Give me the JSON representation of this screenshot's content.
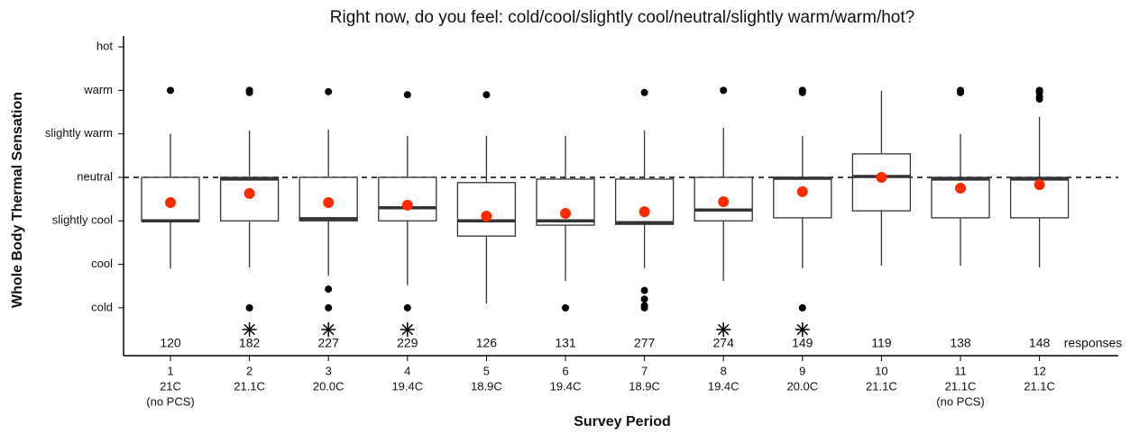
{
  "chart_data": {
    "type": "box",
    "title": "Right now, do you feel: cold/cool/slightly cool/neutral/slightly warm/warm/hot?",
    "y_label": "Whole Body Thermal Sensation",
    "x_label": "Survey Period",
    "categories": [
      "1",
      "2",
      "3",
      "4",
      "5",
      "6",
      "7",
      "8",
      "9",
      "10",
      "11",
      "12"
    ],
    "temperatures": [
      "21C",
      "21.1C",
      "20.0C",
      "19.4C",
      "18.9C",
      "19.4C",
      "18.9C",
      "19.4C",
      "20.0C",
      "21.1C",
      "21.1C",
      "21.1C"
    ],
    "notes": [
      "(no PCS)",
      null,
      null,
      null,
      null,
      null,
      null,
      null,
      null,
      null,
      "(no PCS)",
      null
    ],
    "counts": [
      120,
      182,
      227,
      229,
      126,
      131,
      277,
      274,
      149,
      119,
      138,
      148
    ],
    "counts_unit": "responses",
    "significant": [
      false,
      true,
      true,
      true,
      false,
      false,
      false,
      true,
      true,
      false,
      false,
      false
    ],
    "boxes": [
      {
        "low": -2.1,
        "q1": -1,
        "median": -1,
        "q3": 0,
        "high": 1,
        "mean": -0.58,
        "outliers": [
          2
        ]
      },
      {
        "low": -2.07,
        "q1": -1,
        "median": -0.04,
        "q3": 0,
        "high": 1.08,
        "mean": -0.37,
        "outliers": [
          2,
          1.95,
          -3
        ]
      },
      {
        "low": -2.26,
        "q1": -1,
        "median": -0.95,
        "q3": 0,
        "high": 1.1,
        "mean": -0.58,
        "outliers": [
          1.97,
          -2.57,
          -3
        ]
      },
      {
        "low": -2.48,
        "q1": -1,
        "median": -0.7,
        "q3": 0,
        "high": 0.95,
        "mean": -0.64,
        "outliers": [
          1.9,
          -3
        ]
      },
      {
        "low": -2.9,
        "q1": -1.35,
        "median": -1,
        "q3": -0.12,
        "high": 0.95,
        "mean": -0.89,
        "outliers": [
          1.9
        ]
      },
      {
        "low": -2.38,
        "q1": -1.1,
        "median": -1,
        "q3": -0.04,
        "high": 0.95,
        "mean": -0.83,
        "outliers": [
          -3
        ]
      },
      {
        "low": -2.09,
        "q1": -1.08,
        "median": -1.04,
        "q3": -0.04,
        "high": 1.08,
        "mean": -0.79,
        "outliers": [
          1.95,
          -2.6,
          -2.8,
          -2.95,
          -3
        ]
      },
      {
        "low": -2.38,
        "q1": -1,
        "median": -0.75,
        "q3": 0,
        "high": 1.14,
        "mean": -0.56,
        "outliers": [
          2
        ]
      },
      {
        "low": -2.09,
        "q1": -0.93,
        "median": -0.02,
        "q3": 0,
        "high": 0.95,
        "mean": -0.33,
        "outliers": [
          2,
          1.95,
          -3
        ]
      },
      {
        "low": -2.03,
        "q1": -0.77,
        "median": 0.02,
        "q3": 0.54,
        "high": 1.99,
        "mean": 0,
        "outliers": []
      },
      {
        "low": -2.03,
        "q1": -0.93,
        "median": -0.04,
        "q3": 0,
        "high": 1,
        "mean": -0.25,
        "outliers": [
          2,
          1.95
        ]
      },
      {
        "low": -2.07,
        "q1": -0.93,
        "median": -0.04,
        "q3": 0,
        "high": 1.39,
        "mean": -0.17,
        "outliers": [
          2,
          1.95,
          1.85,
          1.8
        ]
      }
    ],
    "reference_line": 0,
    "ylim": [
      -4.1,
      3.25
    ],
    "yticks": [
      {
        "value": -3,
        "label": "cold"
      },
      {
        "value": -2,
        "label": "cool"
      },
      {
        "value": -1,
        "label": "slightly cool"
      },
      {
        "value": 0,
        "label": "neutral"
      },
      {
        "value": 1,
        "label": "slightly warm"
      },
      {
        "value": 2,
        "label": "warm"
      },
      {
        "value": 3,
        "label": "hot"
      }
    ],
    "box_color": "#ffffff",
    "mean_color": "#ff2a00",
    "outlier_color": "#000000"
  }
}
